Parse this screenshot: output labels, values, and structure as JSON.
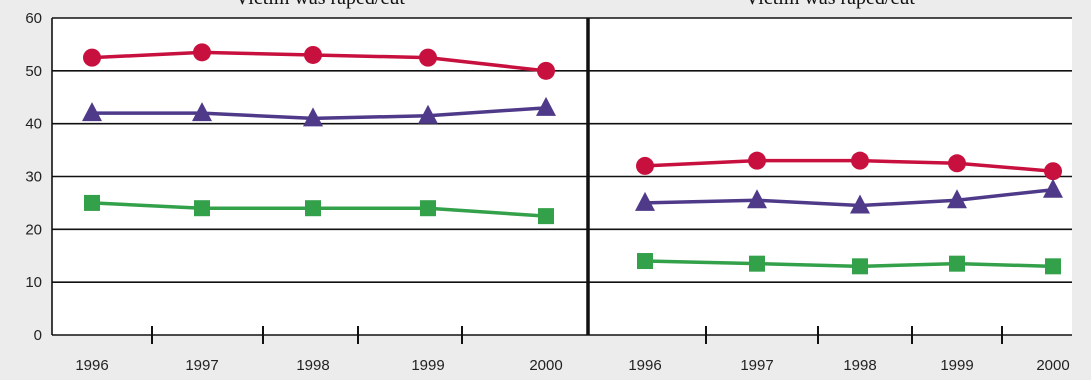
{
  "chart_data": [
    {
      "type": "line",
      "title": "Victim was raped/cut",
      "categories": [
        "1996",
        "1997",
        "1998",
        "1999",
        "2000"
      ],
      "ylim": [
        0,
        60
      ],
      "yticks": [
        "0",
        "10",
        "20",
        "30",
        "40",
        "50",
        "60"
      ],
      "grid": true,
      "series": [
        {
          "marker": "circle",
          "color": "#c8103f",
          "values": [
            52.5,
            53.5,
            53,
            52.5,
            50
          ]
        },
        {
          "marker": "triangle",
          "color": "#4f3a8a",
          "values": [
            42,
            42,
            41,
            41.5,
            43
          ]
        },
        {
          "marker": "square",
          "color": "#33a04a",
          "values": [
            25,
            24,
            24,
            24,
            22.5
          ]
        }
      ]
    },
    {
      "type": "line",
      "title": "Victim was raped/cut",
      "categories": [
        "1996",
        "1997",
        "1998",
        "1999",
        "2000"
      ],
      "ylim": [
        0,
        60
      ],
      "grid": true,
      "series": [
        {
          "marker": "circle",
          "color": "#c8103f",
          "values": [
            32,
            33,
            33,
            32.5,
            31
          ]
        },
        {
          "marker": "triangle",
          "color": "#4f3a8a",
          "values": [
            25,
            25.5,
            24.5,
            25.5,
            27.5
          ]
        },
        {
          "marker": "square",
          "color": "#33a04a",
          "values": [
            14,
            13.5,
            13,
            13.5,
            13
          ]
        }
      ]
    }
  ]
}
